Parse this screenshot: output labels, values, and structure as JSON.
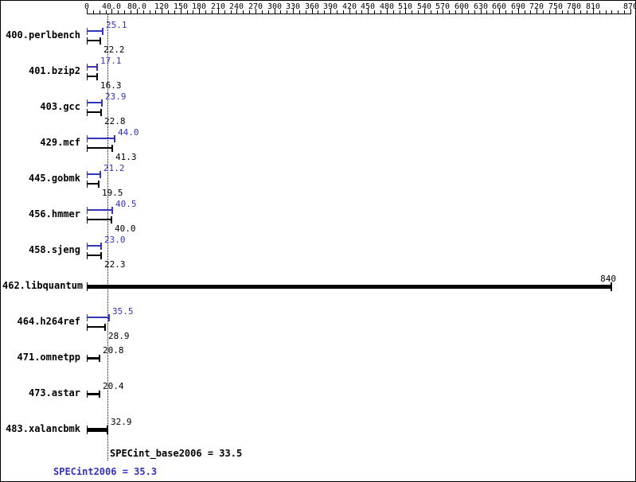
{
  "chart_data": {
    "type": "bar",
    "orientation": "horizontal",
    "title": "",
    "xlabel": "",
    "ylabel": "",
    "xlim": [
      0,
      870
    ],
    "axis_tick_values": [
      0,
      40,
      80,
      120,
      150,
      180,
      210,
      240,
      270,
      300,
      330,
      360,
      390,
      420,
      450,
      480,
      510,
      540,
      570,
      600,
      630,
      660,
      690,
      720,
      750,
      780,
      810,
      870
    ],
    "axis_tick_labels": [
      "0",
      "40.0",
      "80.0",
      "120",
      "150",
      "180",
      "210",
      "240",
      "270",
      "300",
      "330",
      "360",
      "390",
      "420",
      "450",
      "480",
      "510",
      "540",
      "570",
      "600",
      "630",
      "660",
      "690",
      "720",
      "750",
      "780",
      "810",
      "870"
    ],
    "minor_tick_step": 10,
    "series": [
      {
        "name": "peak",
        "color": "#3333bb"
      },
      {
        "name": "base",
        "color": "#000000"
      }
    ],
    "benchmarks": [
      {
        "label": "400.perlbench",
        "peak": 25.1,
        "base": 22.2,
        "peak_label": "25.1",
        "base_label": "22.2",
        "style": "double"
      },
      {
        "label": "401.bzip2",
        "peak": 17.1,
        "base": 16.3,
        "peak_label": "17.1",
        "base_label": "16.3",
        "style": "double"
      },
      {
        "label": "403.gcc",
        "peak": 23.9,
        "base": 22.8,
        "peak_label": "23.9",
        "base_label": "22.8",
        "style": "double"
      },
      {
        "label": "429.mcf",
        "peak": 44.0,
        "base": 41.3,
        "peak_label": "44.0",
        "base_label": "41.3",
        "style": "double"
      },
      {
        "label": "445.gobmk",
        "peak": 21.2,
        "base": 19.5,
        "peak_label": "21.2",
        "base_label": "19.5",
        "style": "double"
      },
      {
        "label": "456.hmmer",
        "peak": 40.5,
        "base": 40.0,
        "peak_label": "40.5",
        "base_label": "40.0",
        "style": "double"
      },
      {
        "label": "458.sjeng",
        "peak": 23.0,
        "base": 22.3,
        "peak_label": "23.0",
        "base_label": "22.3",
        "style": "double"
      },
      {
        "label": "462.libquantum",
        "base": 840,
        "base_label": "840",
        "style": "single-thick",
        "label_align": "right"
      },
      {
        "label": "464.h264ref",
        "peak": 35.5,
        "base": 28.9,
        "peak_label": "35.5",
        "base_label": "28.9",
        "style": "double"
      },
      {
        "label": "471.omnetpp",
        "base": 20.8,
        "base_label": "20.8",
        "style": "single"
      },
      {
        "label": "473.astar",
        "base": 20.4,
        "base_label": "20.4",
        "style": "single"
      },
      {
        "label": "483.xalancbmk",
        "base": 32.9,
        "base_label": "32.9",
        "style": "single-thick"
      }
    ],
    "reference_line": {
      "value": 33.5,
      "style": "dotted",
      "color": "#000000"
    },
    "summary": {
      "base_text": "SPECint_base2006 = 33.5",
      "peak_text": "SPECint2006 = 35.3",
      "base_value": 33.5,
      "peak_value": 35.3
    },
    "colors": {
      "peak": "#3333bb",
      "base": "#000000",
      "background": "#ffffff",
      "border": "#000000"
    }
  }
}
